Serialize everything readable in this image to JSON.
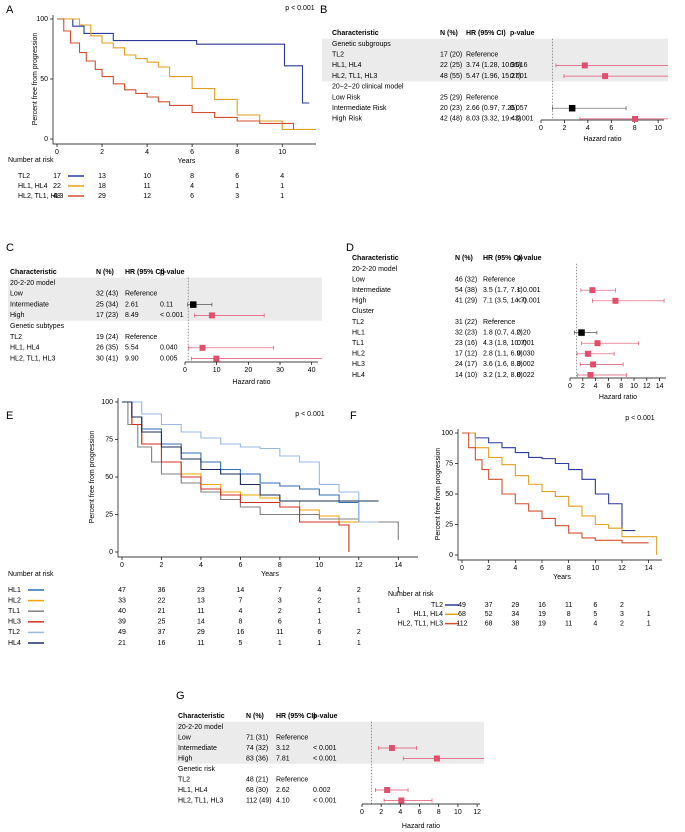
{
  "chart_data": [
    {
      "type": "km",
      "panel": "A",
      "title": "p < 0.001",
      "xlabel": "Years",
      "ylabel": "Percent free from progression",
      "risk_table_title": "Number at risk",
      "xlim": [
        0,
        11.5
      ],
      "ylim": [
        0,
        100
      ],
      "xticks": [
        0,
        2,
        4,
        6,
        8,
        10
      ],
      "yticks": [
        0,
        50,
        100
      ],
      "series": [
        {
          "name": "TL2",
          "color": "#2b3a9b",
          "x": [
            0,
            0.7,
            1.2,
            2.5,
            6.2,
            10.1,
            10.9,
            11.2
          ],
          "values": [
            100,
            94,
            88,
            82,
            79,
            61,
            30,
            30
          ],
          "at_risk": [
            17,
            13,
            10,
            8,
            6,
            4
          ]
        },
        {
          "name": "HL1, HL4",
          "color": "#e0a020",
          "x": [
            0,
            1,
            1.5,
            2,
            2.5,
            3,
            3.5,
            4,
            4.5,
            5,
            6,
            7,
            8,
            9,
            10,
            11.5
          ],
          "values": [
            100,
            95,
            86,
            80,
            76,
            70,
            67,
            64,
            60,
            52,
            42,
            33,
            20,
            15,
            8,
            8
          ],
          "at_risk": [
            22,
            18,
            11,
            4,
            1,
            1
          ]
        },
        {
          "name": "HL2, TL1, HL3",
          "color": "#d05030",
          "x": [
            0,
            0.3,
            0.6,
            1,
            1.3,
            1.7,
            2,
            2.5,
            3,
            3.5,
            4,
            4.5,
            5,
            6,
            7,
            8,
            9,
            10.5
          ],
          "values": [
            100,
            90,
            80,
            72,
            65,
            58,
            52,
            46,
            41,
            38,
            35,
            31,
            28,
            22,
            18,
            15,
            13,
            8
          ],
          "at_risk": [
            48,
            29,
            12,
            6,
            3,
            1
          ]
        }
      ]
    },
    {
      "type": "forest",
      "panel": "B",
      "columns": [
        "Characteristic",
        "N (%)",
        "HR (95% CI)",
        "p-value"
      ],
      "xlabel": "Hazard ratio",
      "xlim": [
        0,
        10.5
      ],
      "xticks": [
        0,
        2,
        4,
        6,
        8,
        10
      ],
      "reference_line": 1,
      "shaded": true,
      "colors": {
        "significant": "#e0506e",
        "other": "#000000",
        "reference": "#999999"
      },
      "rows": [
        {
          "label": "Genetic subgroups"
        },
        {
          "label": "TL2",
          "n": "17 (20)",
          "hr_text": "Reference"
        },
        {
          "label": "HL1, HL4",
          "n": "22 (25)",
          "hr_text": "3.74 (1.28, 10.95)",
          "p": "0.016",
          "hr": 3.74,
          "ci": [
            1.28,
            10.95
          ],
          "significant": true
        },
        {
          "label": "HL2, TL1, HL3",
          "n": "48 (55)",
          "hr_text": "5.47 (1.96, 15.27)",
          "p": "0.001",
          "hr": 5.47,
          "ci": [
            1.96,
            15.27
          ],
          "significant": true
        },
        {
          "label": "20−2−20 clinical model"
        },
        {
          "label": "Low Risk",
          "n": "25 (29)",
          "hr_text": "Reference"
        },
        {
          "label": "Intermediate Risk",
          "n": "20 (23)",
          "hr_text": "2.66 (0.97, 7.26)",
          "p": "0.057",
          "hr": 2.66,
          "ci": [
            0.97,
            7.26
          ],
          "significant": false
        },
        {
          "label": "High Risk",
          "n": "42 (48)",
          "hr_text": "8.03 (3.32, 19.43)",
          "p": "< 0.001",
          "hr": 8.03,
          "ci": [
            3.32,
            19.43
          ],
          "significant": true
        }
      ]
    },
    {
      "type": "forest",
      "panel": "C",
      "columns": [
        "Characteristic",
        "N (%)",
        "HR (95% CI)",
        "p-value"
      ],
      "xlabel": "Hazard ratio",
      "xlim": [
        0,
        42
      ],
      "xticks": [
        0,
        10,
        20,
        30,
        40
      ],
      "reference_line": 1,
      "shaded": true,
      "colors": {
        "significant": "#e0506e",
        "other": "#000000",
        "reference": "#999999"
      },
      "rows": [
        {
          "label": "20-2-20 model"
        },
        {
          "label": "Low",
          "n": "32 (43)",
          "hr_text": "Reference"
        },
        {
          "label": "Intermediate",
          "n": "25 (34)",
          "hr_text": "2.61",
          "p": "0.11",
          "hr": 2.61,
          "ci": [
            0.8,
            8.5
          ],
          "significant": false
        },
        {
          "label": "High",
          "n": "17 (23)",
          "hr_text": "8.49",
          "p": "< 0.001",
          "hr": 8.49,
          "ci": [
            3,
            25
          ],
          "significant": true
        },
        {
          "label": "Genetic subtypes"
        },
        {
          "label": "TL2",
          "n": "19 (24)",
          "hr_text": "Reference"
        },
        {
          "label": "HL1, HL4",
          "n": "26 (35)",
          "hr_text": "5.54",
          "p": "0.040",
          "hr": 5.54,
          "ci": [
            1.1,
            28
          ],
          "significant": true
        },
        {
          "label": "HL2, TL1, HL3",
          "n": "30 (41)",
          "hr_text": "9.90",
          "p": "0.005",
          "hr": 9.9,
          "ci": [
            2,
            47
          ],
          "significant": true
        }
      ]
    },
    {
      "type": "forest",
      "panel": "D",
      "columns": [
        "Characteristic",
        "N (%)",
        "HR (95% CI)",
        "p-value"
      ],
      "xlabel": "Hazard ratio",
      "xlim": [
        0,
        15
      ],
      "xticks": [
        0,
        2,
        4,
        6,
        8,
        10,
        12,
        14
      ],
      "reference_line": 1,
      "shaded": false,
      "colors": {
        "significant": "#e0506e",
        "other": "#000000",
        "reference": "#999999"
      },
      "rows": [
        {
          "label": "20-2-20 model"
        },
        {
          "label": "Low",
          "n": "46 (32)",
          "hr_text": "Reference"
        },
        {
          "label": "Intermediate",
          "n": "54 (38)",
          "hr_text": "3.5 (1.7, 7.1)",
          "p": "< 0.001",
          "hr": 3.5,
          "ci": [
            1.7,
            7.1
          ],
          "significant": true
        },
        {
          "label": "High",
          "n": "41 (29)",
          "hr_text": "7.1 (3.5, 14.7)",
          "p": "< 0.001",
          "hr": 7.1,
          "ci": [
            3.5,
            14.7
          ],
          "significant": true
        },
        {
          "label": "Cluster"
        },
        {
          "label": "TL2",
          "n": "31 (22)",
          "hr_text": "Reference"
        },
        {
          "label": "HL1",
          "n": "32 (23)",
          "hr_text": "1.8 (0.7, 4.2)",
          "p": "0.20",
          "hr": 1.8,
          "ci": [
            0.7,
            4.2
          ],
          "significant": false
        },
        {
          "label": "TL1",
          "n": "23 (16)",
          "hr_text": "4.3 (1.8, 10.7)",
          "p": "0.001",
          "hr": 4.3,
          "ci": [
            1.8,
            10.7
          ],
          "significant": true
        },
        {
          "label": "HL2",
          "n": "17 (12)",
          "hr_text": "2.8 (1.1, 6.9)",
          "p": "0.030",
          "hr": 2.8,
          "ci": [
            1.1,
            6.9
          ],
          "significant": true
        },
        {
          "label": "HL3",
          "n": "24 (17)",
          "hr_text": "3.6 (1.6, 8.3)",
          "p": "0.002",
          "hr": 3.6,
          "ci": [
            1.6,
            8.3
          ],
          "significant": true
        },
        {
          "label": "HL4",
          "n": "14 (10)",
          "hr_text": "3.2 (1.2, 8.8)",
          "p": "0.022",
          "hr": 3.2,
          "ci": [
            1.2,
            8.8
          ],
          "significant": true
        }
      ]
    },
    {
      "type": "km",
      "panel": "E",
      "title": "p < 0.001",
      "xlabel": "Years",
      "ylabel": "Percent free from progression",
      "risk_table_title": "Number at risk",
      "xlim": [
        0,
        15
      ],
      "ylim": [
        0,
        100
      ],
      "xticks": [
        0,
        2,
        4,
        6,
        8,
        10,
        12,
        14
      ],
      "yticks": [
        0,
        25,
        50,
        75,
        100
      ],
      "series": [
        {
          "name": "HL1",
          "color": "#2f6eb5",
          "x": [
            0,
            0.5,
            1,
            2,
            3,
            4,
            5,
            6,
            7,
            8,
            9,
            10,
            11,
            12
          ],
          "values": [
            100,
            90,
            82,
            72,
            66,
            60,
            55,
            52,
            46,
            44,
            42,
            38,
            33,
            20
          ],
          "at_risk": [
            47,
            36,
            23,
            14,
            7,
            4,
            2,
            1
          ]
        },
        {
          "name": "HL2",
          "color": "#f0a500",
          "x": [
            0,
            0.5,
            1,
            2,
            3,
            4,
            5,
            6,
            7,
            8,
            9,
            10,
            11,
            12
          ],
          "values": [
            100,
            85,
            72,
            60,
            52,
            45,
            40,
            38,
            36,
            34,
            28,
            24,
            20,
            20
          ],
          "at_risk": [
            33,
            22,
            13,
            7,
            3,
            2,
            1
          ]
        },
        {
          "name": "TL1",
          "color": "#808080",
          "x": [
            0,
            0.3,
            0.8,
            1.5,
            2,
            3,
            4,
            5,
            6,
            7,
            10,
            12,
            14
          ],
          "values": [
            100,
            85,
            70,
            60,
            52,
            46,
            40,
            35,
            30,
            25,
            22,
            20,
            8
          ],
          "at_risk": [
            40,
            21,
            11,
            4,
            2,
            1,
            1,
            1
          ]
        },
        {
          "name": "HL3",
          "color": "#d03020",
          "x": [
            0,
            0.5,
            1,
            2,
            3,
            4,
            5,
            6,
            8,
            9,
            10,
            11,
            11.5
          ],
          "values": [
            100,
            85,
            72,
            60,
            50,
            42,
            38,
            33,
            30,
            20,
            20,
            18,
            0
          ],
          "at_risk": [
            39,
            25,
            14,
            8,
            6,
            1
          ]
        },
        {
          "name": "TL2",
          "color": "#9bb8e0",
          "x": [
            0,
            1,
            2,
            3,
            4,
            5,
            6,
            7,
            8,
            9,
            10,
            11,
            12,
            13
          ],
          "values": [
            100,
            92,
            85,
            80,
            76,
            72,
            70,
            69,
            64,
            60,
            45,
            40,
            20,
            20
          ],
          "at_risk": [
            49,
            37,
            29,
            16,
            11,
            6,
            2
          ]
        },
        {
          "name": "HL4",
          "color": "#1a2f5a",
          "x": [
            0,
            0.5,
            1,
            2,
            3,
            4,
            5,
            6,
            7,
            8,
            10,
            12,
            13
          ],
          "values": [
            100,
            90,
            80,
            70,
            62,
            55,
            52,
            45,
            38,
            34,
            34,
            34,
            34
          ],
          "at_risk": [
            21,
            16,
            11,
            5,
            1,
            1,
            1
          ]
        }
      ]
    },
    {
      "type": "km",
      "panel": "F",
      "title": "p < 0.001",
      "xlabel": "Years",
      "ylabel": "Percent free from progression",
      "risk_table_title": "Number at risk",
      "xlim": [
        0,
        15
      ],
      "ylim": [
        0,
        100
      ],
      "xticks": [
        0,
        2,
        4,
        6,
        8,
        10,
        12,
        14
      ],
      "yticks": [
        0,
        25,
        50,
        75,
        100
      ],
      "series": [
        {
          "name": "TL2",
          "color": "#2b3a9b",
          "x": [
            0,
            1,
            2,
            3,
            4,
            5,
            6,
            7,
            8,
            9,
            10,
            11,
            12,
            13
          ],
          "values": [
            100,
            96,
            92,
            88,
            84,
            80,
            79,
            75,
            70,
            62,
            50,
            42,
            20,
            20
          ],
          "at_risk": [
            49,
            37,
            29,
            16,
            11,
            6,
            2
          ]
        },
        {
          "name": "HL1, HL4",
          "color": "#e0a020",
          "x": [
            0,
            1,
            2,
            3,
            4,
            5,
            6,
            7,
            8,
            9,
            10,
            11,
            12,
            14,
            14.6
          ],
          "values": [
            100,
            88,
            80,
            74,
            65,
            58,
            52,
            48,
            40,
            32,
            25,
            22,
            15,
            15,
            0
          ],
          "at_risk": [
            68,
            52,
            34,
            19,
            8,
            5,
            3,
            1
          ]
        },
        {
          "name": "HL2, TL1, HL3",
          "color": "#d05030",
          "x": [
            0,
            0.5,
            1,
            1.5,
            2,
            3,
            4,
            5,
            6,
            7,
            8,
            9,
            10,
            12,
            14
          ],
          "values": [
            100,
            88,
            78,
            70,
            62,
            50,
            42,
            36,
            30,
            24,
            18,
            14,
            12,
            10,
            10
          ],
          "at_risk": [
            112,
            68,
            38,
            19,
            11,
            4,
            2,
            1
          ]
        }
      ]
    },
    {
      "type": "forest",
      "panel": "G",
      "columns": [
        "Characteristic",
        "N (%)",
        "HR (95% CI)",
        "p-value"
      ],
      "xlabel": "Hazard ratio",
      "xlim": [
        0,
        12.3
      ],
      "xticks": [
        0,
        2,
        4,
        6,
        8,
        10,
        12
      ],
      "reference_line": 1,
      "shaded": true,
      "colors": {
        "significant": "#e0506e",
        "other": "#000000",
        "reference": "#999999"
      },
      "rows": [
        {
          "label": "20-2-20 model"
        },
        {
          "label": "Low",
          "n": "71 (31)",
          "hr_text": "Reference"
        },
        {
          "label": "Intermediate",
          "n": "74 (32)",
          "hr_text": "3.12",
          "p": "< 0.001",
          "hr": 3.12,
          "ci": [
            1.7,
            5.7
          ],
          "significant": true
        },
        {
          "label": "High",
          "n": "83 (36)",
          "hr_text": "7.81",
          "p": "< 0.001",
          "hr": 7.81,
          "ci": [
            4.3,
            14
          ],
          "significant": true
        },
        {
          "label": "Genetic risk"
        },
        {
          "label": "TL2",
          "n": "48 (21)",
          "hr_text": "Reference"
        },
        {
          "label": "HL1, HL4",
          "n": "68 (30)",
          "hr_text": "2.62",
          "p": "0.002",
          "hr": 2.62,
          "ci": [
            1.4,
            4.8
          ],
          "significant": true
        },
        {
          "label": "HL2, TL1, HL3",
          "n": "112 (49)",
          "hr_text": "4.10",
          "p": "< 0.001",
          "hr": 4.1,
          "ci": [
            2.3,
            7.3
          ],
          "significant": true
        }
      ]
    }
  ]
}
